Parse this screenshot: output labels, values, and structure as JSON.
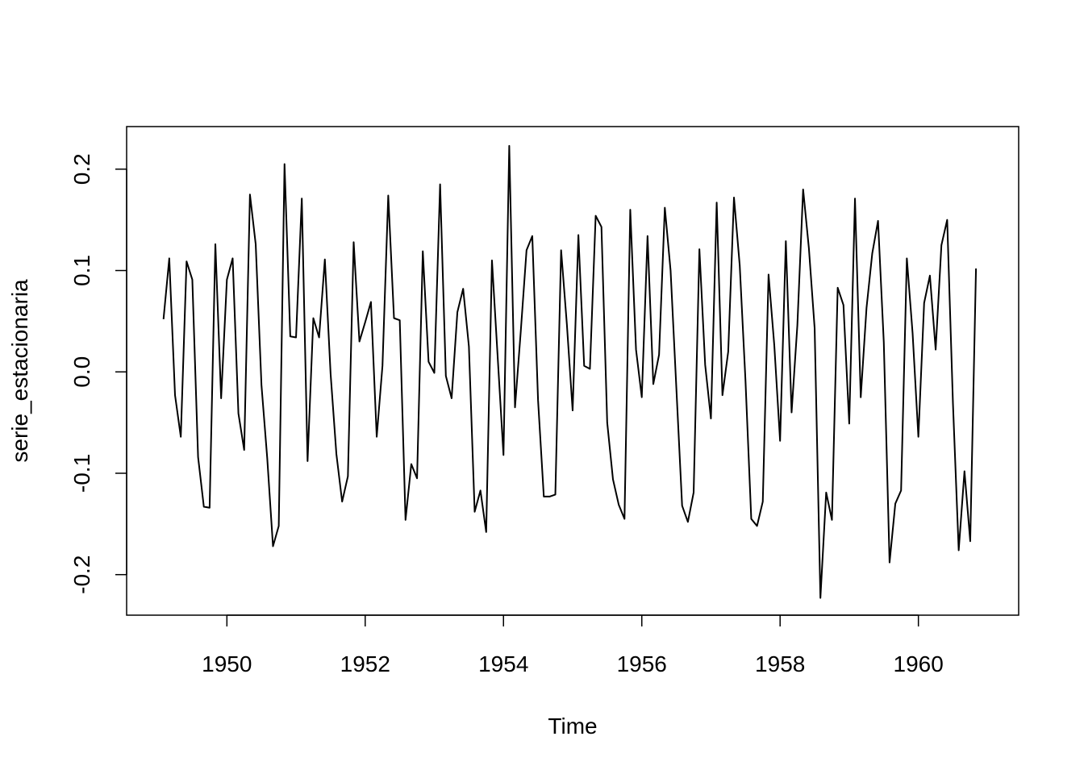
{
  "chart_data": {
    "type": "line",
    "title": "",
    "xlabel": "Time",
    "ylabel": "serie_estacionaria",
    "xlim": [
      1948.55,
      1961.45
    ],
    "ylim": [
      -0.24,
      0.242
    ],
    "x_ticks": [
      1950,
      1952,
      1954,
      1956,
      1958,
      1960
    ],
    "x_tick_labels": [
      "1950",
      "1952",
      "1954",
      "1956",
      "1958",
      "1960"
    ],
    "y_ticks": [
      -0.2,
      -0.1,
      0.0,
      0.1,
      0.2
    ],
    "y_tick_labels": [
      "-0.2",
      "-0.1",
      "0.0",
      "0.1",
      "0.2"
    ],
    "grid": false,
    "line_color": "#000000",
    "series": [
      {
        "x_start": 1949.0833,
        "x_step": 0.08333,
        "values": [
          0.052,
          0.112,
          -0.023,
          -0.064,
          0.109,
          0.091,
          -0.084,
          -0.133,
          -0.134,
          0.126,
          -0.026,
          0.091,
          0.112,
          -0.041,
          -0.077,
          0.175,
          0.126,
          -0.013,
          -0.085,
          -0.172,
          -0.152,
          0.205,
          0.035,
          0.034,
          0.171,
          -0.088,
          0.053,
          0.034,
          0.111,
          -0.002,
          -0.081,
          -0.128,
          -0.103,
          0.128,
          0.03,
          0.049,
          0.069,
          -0.064,
          0.006,
          0.174,
          0.053,
          0.051,
          -0.146,
          -0.091,
          -0.105,
          0.119,
          0.01,
          -0.001,
          0.185,
          -0.004,
          -0.026,
          0.059,
          0.082,
          0.025,
          -0.138,
          -0.117,
          -0.158,
          0.11,
          0.014,
          -0.082,
          0.223,
          -0.035,
          0.04,
          0.12,
          0.134,
          -0.028,
          -0.123,
          -0.123,
          -0.121,
          0.12,
          0.047,
          -0.038,
          0.135,
          0.006,
          0.003,
          0.154,
          0.143,
          -0.05,
          -0.106,
          -0.131,
          -0.145,
          0.16,
          0.022,
          -0.025,
          0.134,
          -0.012,
          0.017,
          0.162,
          0.1,
          -0.016,
          -0.132,
          -0.148,
          -0.119,
          0.121,
          0.007,
          -0.046,
          0.167,
          -0.023,
          0.02,
          0.172,
          0.105,
          -0.009,
          -0.145,
          -0.152,
          -0.128,
          0.096,
          0.026,
          -0.068,
          0.129,
          -0.04,
          0.046,
          0.18,
          0.122,
          0.043,
          -0.223,
          -0.119,
          -0.146,
          0.083,
          0.066,
          -0.051,
          0.171,
          -0.025,
          0.063,
          0.117,
          0.149,
          0.029,
          -0.188,
          -0.13,
          -0.117,
          0.112,
          0.038,
          -0.064,
          0.068,
          0.095,
          0.022,
          0.125,
          0.15,
          -0.031,
          -0.176,
          -0.098,
          -0.167,
          0.102
        ]
      }
    ]
  }
}
